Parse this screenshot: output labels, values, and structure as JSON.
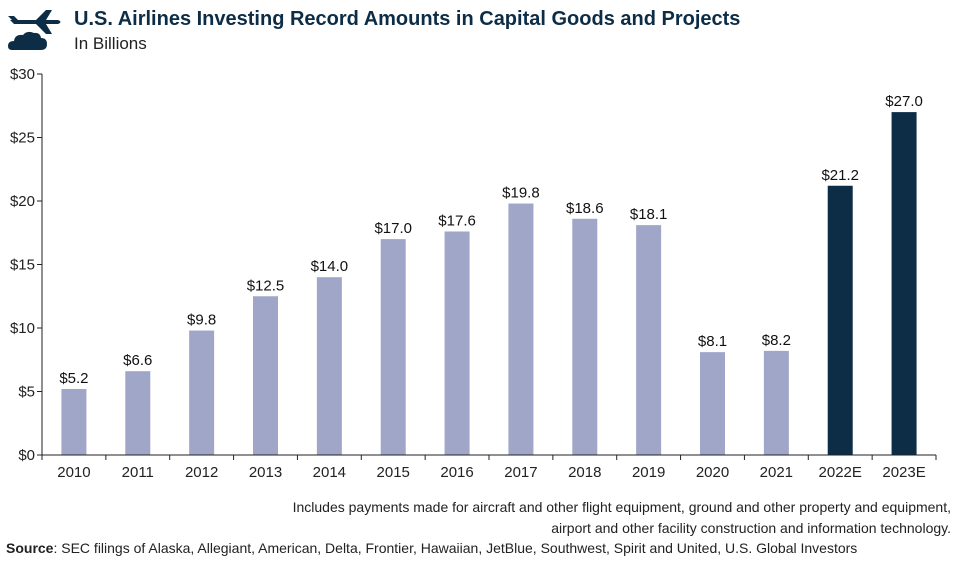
{
  "header": {
    "logo_icon": "airplane-cloud-icon",
    "title": "U.S. Airlines Investing Record Amounts in Capital Goods and Projects",
    "subtitle": "In Billions"
  },
  "footnote": {
    "line1": "Includes payments made for aircraft and other flight equipment, ground and other property and equipment,",
    "line2": "airport and other facility construction and information technology."
  },
  "source": {
    "label": "Source",
    "text": ": SEC filings of Alaska, Allegiant, American, Delta, Frontier, Hawaiian, JetBlue, Southwest, Spirit and United, U.S. Global Investors"
  },
  "colors": {
    "actual": "#a0a6c8",
    "estimate": "#0d2d47",
    "title": "#0d2d47"
  },
  "chart_data": {
    "type": "bar",
    "title": "U.S. Airlines Investing Record Amounts in Capital Goods and Projects",
    "subtitle": "In Billions",
    "categories": [
      "2010",
      "2011",
      "2012",
      "2013",
      "2014",
      "2015",
      "2016",
      "2017",
      "2018",
      "2019",
      "2020",
      "2021",
      "2022E",
      "2023E"
    ],
    "values": [
      5.2,
      6.6,
      9.8,
      12.5,
      14.0,
      17.0,
      17.6,
      19.8,
      18.6,
      18.1,
      8.1,
      8.2,
      21.2,
      27.0
    ],
    "data_labels": [
      "$5.2",
      "$6.6",
      "$9.8",
      "$12.5",
      "$14.0",
      "$17.0",
      "$17.6",
      "$19.8",
      "$18.6",
      "$18.1",
      "$8.1",
      "$8.2",
      "$21.2",
      "$27.0"
    ],
    "estimate": [
      false,
      false,
      false,
      false,
      false,
      false,
      false,
      false,
      false,
      false,
      false,
      false,
      true,
      true
    ],
    "y_ticks": [
      0,
      5,
      10,
      15,
      20,
      25,
      30
    ],
    "y_tick_labels": [
      "$0",
      "$5",
      "$10",
      "$15",
      "$20",
      "$25",
      "$30"
    ],
    "ylim": [
      0,
      30
    ],
    "xlabel": "",
    "ylabel": "",
    "grid": false,
    "legend": "none"
  }
}
